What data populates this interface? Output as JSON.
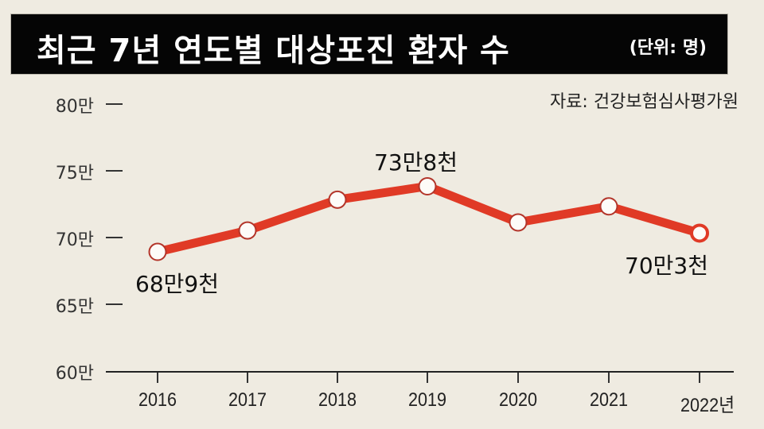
{
  "header": {
    "title": "최근 7년 연도별 대상포진 환자 수",
    "unit": "(단위: 명)"
  },
  "source": "자료: 건강보험심사평가원",
  "y_axis": {
    "ticks": [
      "80만",
      "75만",
      "70만",
      "65만",
      "60만"
    ]
  },
  "x_axis": {
    "ticks": [
      "2016",
      "2017",
      "2018",
      "2019",
      "2020",
      "2021",
      "2022년"
    ]
  },
  "annotations": {
    "first": "68만9천",
    "peak": "73만8천",
    "last": "70만3천"
  },
  "colors": {
    "line": "#e03a26",
    "marker_fill": "#fdfbf8",
    "marker_stroke": "#b3352a",
    "title_bg": "#050505",
    "background": "#efebe1"
  },
  "chart_data": {
    "type": "line",
    "title": "최근 7년 연도별 대상포진 환자 수",
    "subtitle": "(단위: 명)",
    "source": "자료: 건강보험심사평가원",
    "xlabel": "",
    "ylabel": "",
    "categories": [
      "2016",
      "2017",
      "2018",
      "2019",
      "2020",
      "2021",
      "2022"
    ],
    "series": [
      {
        "name": "대상포진 환자 수",
        "values": [
          689000,
          705000,
          728000,
          738000,
          711000,
          723000,
          703000
        ]
      }
    ],
    "ylim": [
      600000,
      800000
    ],
    "ytick_labels": [
      "60만",
      "65만",
      "70만",
      "75만",
      "80만"
    ],
    "annotations": [
      {
        "x": "2016",
        "text": "68만9천"
      },
      {
        "x": "2019",
        "text": "73만8천"
      },
      {
        "x": "2022",
        "text": "70만3천"
      }
    ],
    "grid": false,
    "legend": null
  }
}
